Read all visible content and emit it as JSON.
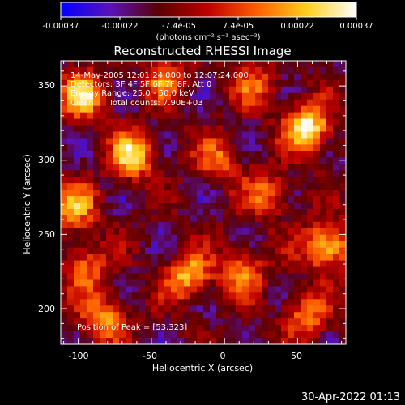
{
  "colorbar": {
    "tick_labels": [
      "-0.00037",
      "-0.00022",
      "-7.4e-05",
      "7.4e-05",
      "0.00022",
      "0.00037"
    ],
    "units_label": "(photons cm⁻² s⁻¹ asec⁻²)",
    "range": [
      -0.00037,
      0.00037
    ],
    "colors": [
      "#0000ff",
      "#5a12b8",
      "#5a0000",
      "#c00000",
      "#ff6000",
      "#ffd020",
      "#ffffff"
    ]
  },
  "plot": {
    "title": "Reconstructed RHESSI Image",
    "annotations": [
      "14-May-2005 12:01:24.000 to 12:07:24.000",
      "Detectors: 3F 4F 5F 6F 7F 8F, Att 0",
      "Energy Range: 25.0 - 50.0 keV",
      "Clean      Total counts: 7.90E+03"
    ],
    "peak_label": "Position of Peak = [53,323]",
    "xlabel": "Heliocentric X (arcsec)",
    "ylabel": "Heliocentric Y (arcsec)",
    "xticks": [
      "-100",
      "-50",
      "0",
      "50"
    ],
    "yticks": [
      "200",
      "250",
      "300",
      "350"
    ]
  },
  "footer": {
    "timestamp": "30-Apr-2022 01:13"
  },
  "chart_data": {
    "type": "heatmap",
    "title": "Reconstructed RHESSI Image",
    "xlabel": "Heliocentric X (arcsec)",
    "ylabel": "Heliocentric Y (arcsec)",
    "xlim": [
      -112,
      83
    ],
    "ylim": [
      176,
      367
    ],
    "value_range": [
      -0.00037,
      0.00037
    ],
    "peak_position": [
      53,
      323
    ],
    "hotspots": [
      {
        "x": 57,
        "y": 322,
        "level": 1.0
      },
      {
        "x": 70,
        "y": 242,
        "level": 0.9
      },
      {
        "x": -63,
        "y": 303,
        "level": 0.85
      },
      {
        "x": -97,
        "y": 343,
        "level": 0.8
      },
      {
        "x": -103,
        "y": 268,
        "level": 0.7
      },
      {
        "x": -25,
        "y": 222,
        "level": 0.75
      },
      {
        "x": -82,
        "y": 193,
        "level": 0.65
      },
      {
        "x": 12,
        "y": 225,
        "level": 0.6
      },
      {
        "x": 30,
        "y": 277,
        "level": 0.55
      },
      {
        "x": -5,
        "y": 300,
        "level": 0.5
      },
      {
        "x": 55,
        "y": 195,
        "level": 0.55
      },
      {
        "x": -40,
        "y": 355,
        "level": 0.5
      },
      {
        "x": -95,
        "y": 228,
        "level": 0.55
      },
      {
        "x": 22,
        "y": 350,
        "level": 0.45
      }
    ]
  }
}
